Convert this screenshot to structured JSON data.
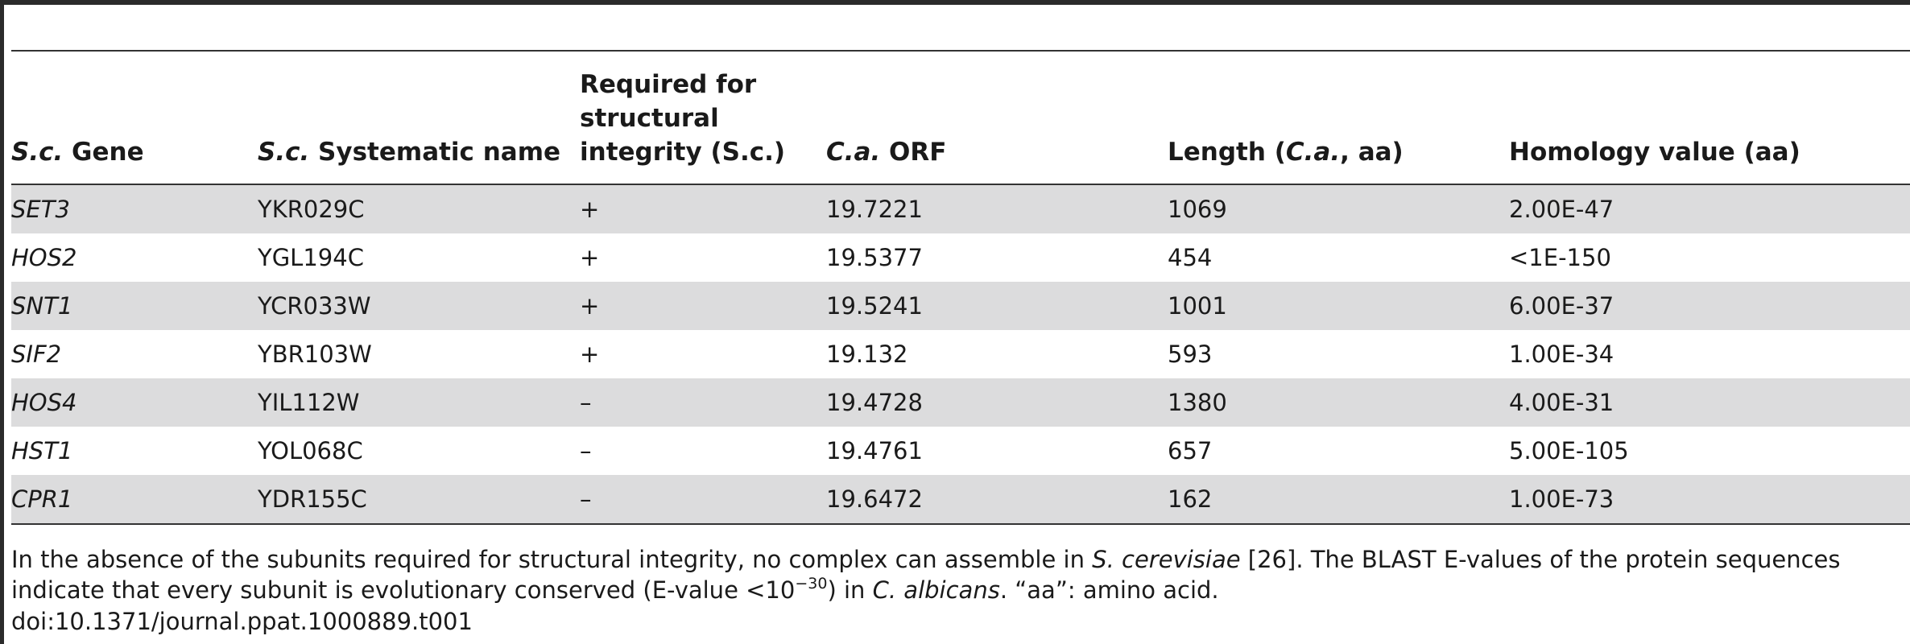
{
  "table": {
    "headers": [
      {
        "prefix": "S.c.",
        "rest": " Gene"
      },
      {
        "prefix": "S.c.",
        "rest": " Systematic name"
      },
      {
        "prefix": "",
        "rest": "Required for structural integrity (S.c.)"
      },
      {
        "prefix": "C.a.",
        "rest": " ORF"
      },
      {
        "pre": "Length (",
        "it": "C.a.",
        "post": ", aa)"
      },
      {
        "prefix": "",
        "rest": "Homology value (aa)"
      }
    ],
    "rows": [
      {
        "gene": "SET3",
        "sysname": "YKR029C",
        "required": "+",
        "orf": "19.7221",
        "length": "1069",
        "homology": "2.00E-47"
      },
      {
        "gene": "HOS2",
        "sysname": "YGL194C",
        "required": "+",
        "orf": "19.5377",
        "length": "454",
        "homology": "<1E-150"
      },
      {
        "gene": "SNT1",
        "sysname": "YCR033W",
        "required": "+",
        "orf": "19.5241",
        "length": "1001",
        "homology": "6.00E-37"
      },
      {
        "gene": "SIF2",
        "sysname": "YBR103W",
        "required": "+",
        "orf": "19.132",
        "length": "593",
        "homology": "1.00E-34"
      },
      {
        "gene": "HOS4",
        "sysname": "YIL112W",
        "required": "–",
        "orf": "19.4728",
        "length": "1380",
        "homology": "4.00E-31"
      },
      {
        "gene": "HST1",
        "sysname": "YOL068C",
        "required": "–",
        "orf": "19.4761",
        "length": "657",
        "homology": "5.00E-105"
      },
      {
        "gene": "CPR1",
        "sysname": "YDR155C",
        "required": "–",
        "orf": "19.6472",
        "length": "162",
        "homology": "1.00E-73"
      }
    ]
  },
  "footnote": {
    "part1": "In the absence of the subunits required for structural integrity, no complex can assemble in ",
    "species1": "S. cerevisiae",
    "part2": " [26]. The BLAST E-values of the protein sequences indicate that every subunit is evolutionary conserved (E-value <10",
    "exponent": "−30",
    "part3": ") in ",
    "species2": "C. albicans",
    "part4": ". “aa”: amino acid."
  },
  "doi": "doi:10.1371/journal.ppat.1000889.t001"
}
